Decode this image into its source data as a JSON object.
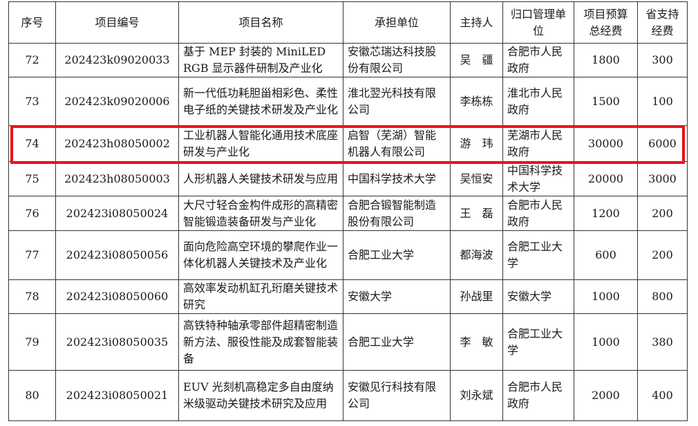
{
  "headers": [
    "序号",
    "项目编号",
    "项目名称",
    "承担单位",
    "主持人",
    "归口管理单位",
    "项目预算总经费",
    "省支持经费"
  ],
  "rows": [
    {
      "no": "72",
      "code": "202423k09020033",
      "name": "基于 MEP 封装的 MiniLED RGB 显示器件研制及产业化",
      "unit": "安徽芯瑞达科技股份有限公司",
      "leader": "吴　疆",
      "admin": "合肥市人民政府",
      "budget": "1800",
      "support": "300"
    },
    {
      "no": "73",
      "code": "202423k09020006",
      "name": "新一代低功耗胆甾相彩色、柔性电子纸的关键技术研发及产业化",
      "unit": "淮北翌光科技有限公司",
      "leader": "李栋栋",
      "admin": "淮北市人民政府",
      "budget": "1500",
      "support": "100"
    },
    {
      "no": "74",
      "code": "202423h08050002",
      "name": "工业机器人智能化通用技术底座研发与产业化",
      "unit": "启智（芜湖）智能机器人有限公司",
      "leader": "游　玮",
      "admin": "芜湖市人民政府",
      "budget": "30000",
      "support": "6000"
    },
    {
      "no": "75",
      "code": "202423h08050003",
      "name": "人形机器人关键技术研发与应用",
      "unit": "中国科学技术大学",
      "leader": "吴恒安",
      "admin": "中国科学技术大学",
      "budget": "20000",
      "support": "3000"
    },
    {
      "no": "76",
      "code": "202423i08050024",
      "name": "大尺寸轻合金构件成形的高精密智能锻造装备研发与产业化",
      "unit": "合肥合锻智能制造股份有限公司",
      "leader": "王　磊",
      "admin": "合肥市人民政府",
      "budget": "1200",
      "support": "200"
    },
    {
      "no": "77",
      "code": "202423i08050056",
      "name": "面向危险高空环境的攀爬作业一体化机器人关键技术及产业化",
      "unit": "合肥工业大学",
      "leader": "都海波",
      "admin": "合肥工业大学",
      "budget": "600",
      "support": "200"
    },
    {
      "no": "78",
      "code": "202423i08050060",
      "name": "高效率发动机缸孔珩磨关键技术研究",
      "unit": "安徽大学",
      "leader": "孙战里",
      "admin": "安徽大学",
      "budget": "1000",
      "support": "800"
    },
    {
      "no": "79",
      "code": "202423i08050035",
      "name": "高铁特种轴承零部件超精密制造新方法、服役性能及成套智能装备",
      "unit": "合肥工业大学",
      "leader": "李　敏",
      "admin": "合肥工业大学",
      "budget": "1000",
      "support": "380"
    },
    {
      "no": "80",
      "code": "202423i08050021",
      "name": "EUV 光刻机高稳定多自由度纳米级驱动关键技术研究及应用",
      "unit": "安徽见行科技有限公司",
      "leader": "刘永斌",
      "admin": "合肥市人民政府",
      "budget": "2000",
      "support": "400"
    }
  ],
  "highlight": {
    "row_no": "74",
    "color": "#e8131a"
  }
}
